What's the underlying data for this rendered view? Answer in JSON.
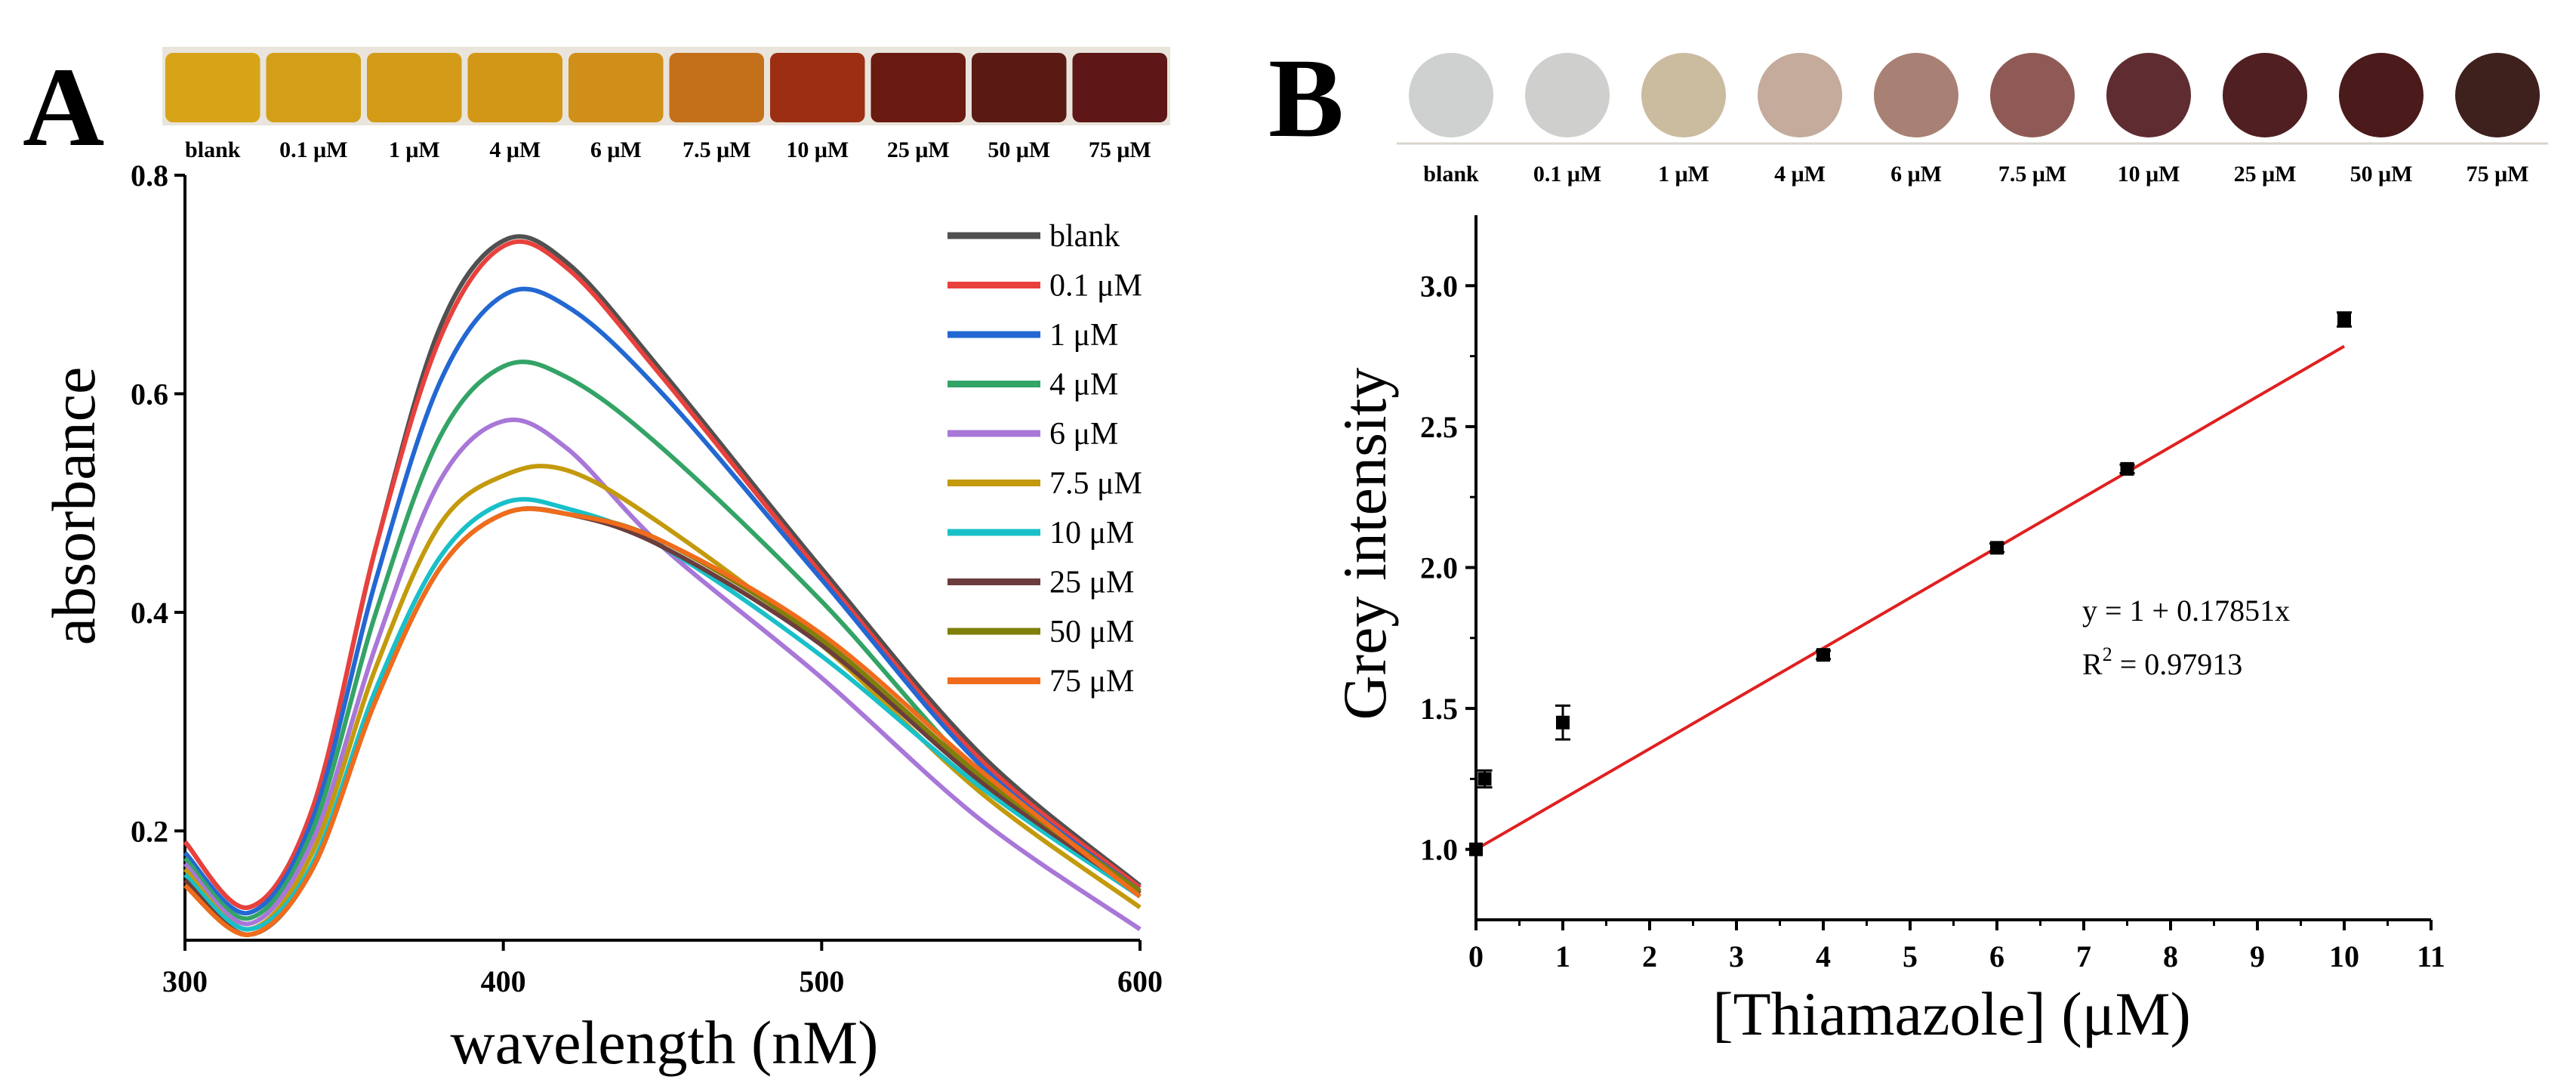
{
  "chart_data": [
    {
      "panel": "A",
      "type": "line",
      "xlabel": "wavelength (nM)",
      "ylabel": "absorbance",
      "xlim": [
        300,
        600
      ],
      "ylim": [
        0.1,
        0.8
      ],
      "xticks": [
        300,
        400,
        500,
        600
      ],
      "yticks": [
        0.2,
        0.4,
        0.6,
        0.8
      ],
      "legend_position": "top-right",
      "vial_strip": {
        "labels": [
          "blank",
          "0.1 μM",
          "1 μM",
          "4 μM",
          "6 μM",
          "7.5 μM",
          "10 μM",
          "25 μM",
          "50 μM",
          "75 μM"
        ],
        "colors": [
          "#d6a416",
          "#d49f18",
          "#d39b17",
          "#d29716",
          "#cf8f18",
          "#c4701a",
          "#9c2f12",
          "#6a1a10",
          "#5a1a14",
          "#5e1616"
        ]
      },
      "x": [
        300,
        320,
        340,
        360,
        380,
        400,
        420,
        450,
        500,
        550,
        600
      ],
      "series": [
        {
          "name": "blank",
          "color": "#505050",
          "values": [
            0.19,
            0.13,
            0.22,
            0.46,
            0.66,
            0.74,
            0.72,
            0.62,
            0.44,
            0.27,
            0.15
          ]
        },
        {
          "name": "0.1 μM",
          "color": "#e8413d",
          "values": [
            0.19,
            0.13,
            0.22,
            0.46,
            0.65,
            0.735,
            0.715,
            0.615,
            0.435,
            0.265,
            0.148
          ]
        },
        {
          "name": "1 μM",
          "color": "#2368d2",
          "values": [
            0.18,
            0.125,
            0.21,
            0.43,
            0.61,
            0.69,
            0.68,
            0.6,
            0.43,
            0.26,
            0.145
          ]
        },
        {
          "name": "4 μM",
          "color": "#33a466",
          "values": [
            0.175,
            0.12,
            0.2,
            0.4,
            0.56,
            0.625,
            0.615,
            0.55,
            0.41,
            0.25,
            0.14
          ]
        },
        {
          "name": "6 μM",
          "color": "#a877d8",
          "values": [
            0.17,
            0.115,
            0.19,
            0.37,
            0.52,
            0.575,
            0.55,
            0.46,
            0.34,
            0.21,
            0.11
          ]
        },
        {
          "name": "7.5 μM",
          "color": "#c39a0c",
          "values": [
            0.165,
            0.11,
            0.18,
            0.35,
            0.48,
            0.525,
            0.53,
            0.48,
            0.37,
            0.235,
            0.13
          ]
        },
        {
          "name": "10 μM",
          "color": "#19c0c8",
          "values": [
            0.16,
            0.11,
            0.17,
            0.33,
            0.45,
            0.5,
            0.495,
            0.46,
            0.36,
            0.24,
            0.14
          ]
        },
        {
          "name": "25 μM",
          "color": "#6b3d3d",
          "values": [
            0.155,
            0.105,
            0.165,
            0.32,
            0.44,
            0.49,
            0.49,
            0.46,
            0.37,
            0.245,
            0.143
          ]
        },
        {
          "name": "50 μM",
          "color": "#7f7f0c",
          "values": [
            0.15,
            0.105,
            0.165,
            0.32,
            0.44,
            0.49,
            0.49,
            0.465,
            0.375,
            0.25,
            0.145
          ]
        },
        {
          "name": "75 μM",
          "color": "#f06c1c",
          "values": [
            0.15,
            0.105,
            0.165,
            0.32,
            0.44,
            0.49,
            0.49,
            0.465,
            0.38,
            0.255,
            0.14
          ]
        }
      ]
    },
    {
      "panel": "B",
      "type": "scatter",
      "xlabel": "[Thiamazole] (μM)",
      "ylabel": "Grey intensity",
      "xlim": [
        0,
        11
      ],
      "ylim": [
        0.75,
        3.25
      ],
      "xticks": [
        0,
        1,
        2,
        3,
        4,
        5,
        6,
        7,
        8,
        9,
        10,
        11
      ],
      "yticks": [
        1.0,
        1.5,
        2.0,
        2.5,
        3.0
      ],
      "well_strip": {
        "labels": [
          "blank",
          "0.1 μM",
          "1 μM",
          "4 μM",
          "6 μM",
          "7.5 μM",
          "10 μM",
          "25 μM",
          "50 μM",
          "75 μM"
        ],
        "colors": [
          "#cfd0d0",
          "#cfd0cd",
          "#cbbca0",
          "#c4ab9c",
          "#a98074",
          "#8f5a55",
          "#5e2c31",
          "#4f1f21",
          "#4a1b1a",
          "#3e201c"
        ]
      },
      "points": [
        {
          "x": 0,
          "y": 1.0,
          "err": 0.0
        },
        {
          "x": 0.1,
          "y": 1.25,
          "err": 0.03
        },
        {
          "x": 1,
          "y": 1.45,
          "err": 0.06
        },
        {
          "x": 4,
          "y": 1.69,
          "err": 0.015
        },
        {
          "x": 6,
          "y": 2.07,
          "err": 0.015
        },
        {
          "x": 7.5,
          "y": 2.35,
          "err": 0.015
        },
        {
          "x": 10,
          "y": 2.88,
          "err": 0.025
        }
      ],
      "fit": {
        "intercept": 1,
        "slope": 0.17851,
        "x_range": [
          0,
          10
        ],
        "color": "#e02020"
      },
      "equation_label": "y = 1 + 0.17851x",
      "r2_label": "R",
      "r2_sup": "2",
      "r2_value": " = 0.97913"
    }
  ]
}
